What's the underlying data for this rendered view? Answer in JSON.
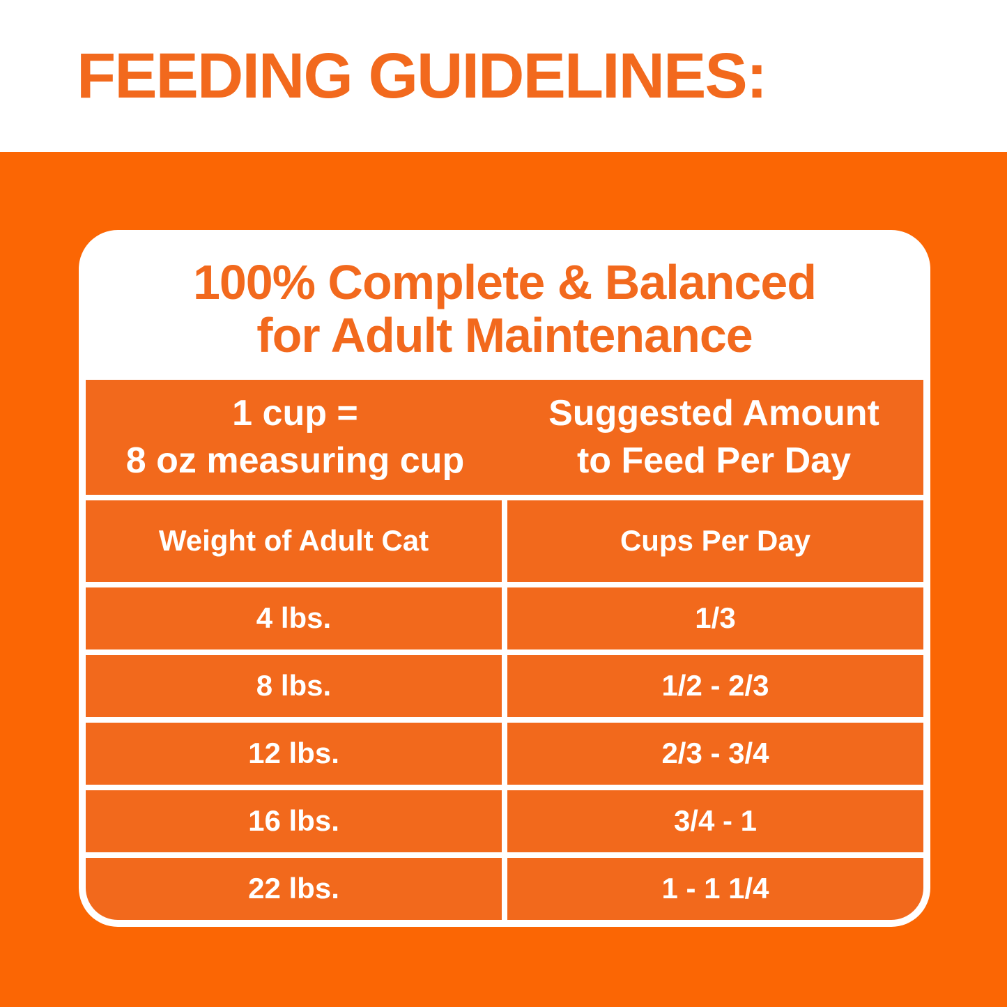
{
  "page": {
    "heading": "FEEDING GUIDELINES:"
  },
  "card": {
    "title_line1": "100% Complete & Balanced",
    "title_line2": "for Adult Maintenance",
    "header": {
      "left_line1": "1 cup =",
      "left_line2": "8 oz measuring cup",
      "right_line1": "Suggested Amount",
      "right_line2": "to Feed Per Day"
    },
    "columns": [
      "Weight of Adult Cat",
      "Cups Per Day"
    ],
    "rows": [
      {
        "weight": "4 lbs.",
        "cups": "1/3"
      },
      {
        "weight": "8 lbs.",
        "cups": "1/2 - 2/3"
      },
      {
        "weight": "12 lbs.",
        "cups": "2/3 - 3/4"
      },
      {
        "weight": "16 lbs.",
        "cups": "3/4 - 1"
      },
      {
        "weight": "22 lbs.",
        "cups": "1 - 1 1/4"
      }
    ]
  },
  "colors": {
    "orange_bg": "#FB6604",
    "orange_table": "#F2691C",
    "orange_text": "#F2691D",
    "card_white": "#FFFFFF"
  }
}
